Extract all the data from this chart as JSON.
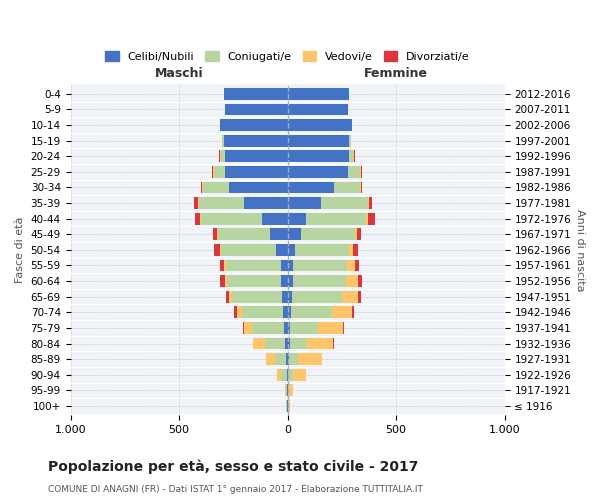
{
  "age_groups": [
    "100+",
    "95-99",
    "90-94",
    "85-89",
    "80-84",
    "75-79",
    "70-74",
    "65-69",
    "60-64",
    "55-59",
    "50-54",
    "45-49",
    "40-44",
    "35-39",
    "30-34",
    "25-29",
    "20-24",
    "15-19",
    "10-14",
    "5-9",
    "0-4"
  ],
  "birth_years": [
    "≤ 1916",
    "1917-1921",
    "1922-1926",
    "1927-1931",
    "1932-1936",
    "1937-1941",
    "1942-1946",
    "1947-1951",
    "1952-1956",
    "1957-1961",
    "1962-1966",
    "1967-1971",
    "1972-1976",
    "1977-1981",
    "1982-1986",
    "1987-1991",
    "1992-1996",
    "1997-2001",
    "2002-2006",
    "2007-2011",
    "2012-2016"
  ],
  "maschi": {
    "celibi": [
      2,
      2,
      4,
      5,
      10,
      15,
      20,
      25,
      30,
      30,
      55,
      80,
      120,
      200,
      270,
      290,
      290,
      295,
      310,
      290,
      295
    ],
    "coniugati": [
      3,
      5,
      25,
      55,
      95,
      150,
      190,
      230,
      250,
      255,
      250,
      240,
      280,
      210,
      120,
      50,
      15,
      5,
      0,
      0,
      0
    ],
    "vedovi": [
      2,
      5,
      20,
      40,
      55,
      35,
      25,
      15,
      10,
      8,
      5,
      5,
      5,
      5,
      5,
      5,
      5,
      0,
      0,
      0,
      0
    ],
    "divorziati": [
      0,
      0,
      0,
      0,
      0,
      5,
      10,
      15,
      20,
      20,
      30,
      20,
      20,
      15,
      5,
      5,
      5,
      0,
      0,
      0,
      0
    ]
  },
  "femmine": {
    "nubili": [
      2,
      2,
      4,
      5,
      10,
      12,
      15,
      20,
      25,
      25,
      35,
      60,
      85,
      155,
      215,
      280,
      285,
      285,
      295,
      280,
      285
    ],
    "coniugate": [
      3,
      5,
      20,
      45,
      80,
      130,
      190,
      230,
      245,
      250,
      250,
      250,
      275,
      215,
      120,
      55,
      15,
      5,
      0,
      0,
      0
    ],
    "vedove": [
      5,
      20,
      60,
      110,
      120,
      115,
      90,
      75,
      55,
      35,
      15,
      10,
      10,
      5,
      5,
      5,
      5,
      0,
      0,
      0,
      0
    ],
    "divorziate": [
      0,
      0,
      0,
      0,
      5,
      5,
      10,
      15,
      20,
      20,
      25,
      20,
      35,
      15,
      5,
      5,
      5,
      0,
      0,
      0,
      0
    ]
  },
  "colors": {
    "single": "#4472c4",
    "married": "#b8d4a0",
    "widowed": "#ffc56a",
    "divorced": "#d9363e"
  },
  "legend_labels": [
    "Celibi/Nubili",
    "Coniugati/e",
    "Vedovi/e",
    "Divorziati/e"
  ],
  "title": "Popolazione per età, sesso e stato civile - 2017",
  "subtitle": "COMUNE DI ANAGNI (FR) - Dati ISTAT 1° gennaio 2017 - Elaborazione TUTTITALIA.IT",
  "xlabel_left": "Maschi",
  "xlabel_right": "Femmine",
  "ylabel_left": "Fasce di età",
  "ylabel_right": "Anni di nascita",
  "xmax": 1000,
  "background_color": "#ffffff"
}
